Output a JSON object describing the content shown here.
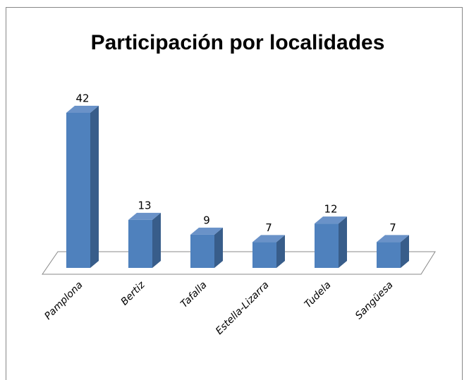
{
  "chart_data": {
    "type": "bar3d",
    "title": "Participación por localidades",
    "categories": [
      "Pamplona",
      "Bertiz",
      "Tafalla",
      "Estella-Lizarra",
      "Tudela",
      "Sangüesa"
    ],
    "values": [
      42,
      13,
      9,
      7,
      12,
      7
    ],
    "color": "#4f81bd"
  }
}
